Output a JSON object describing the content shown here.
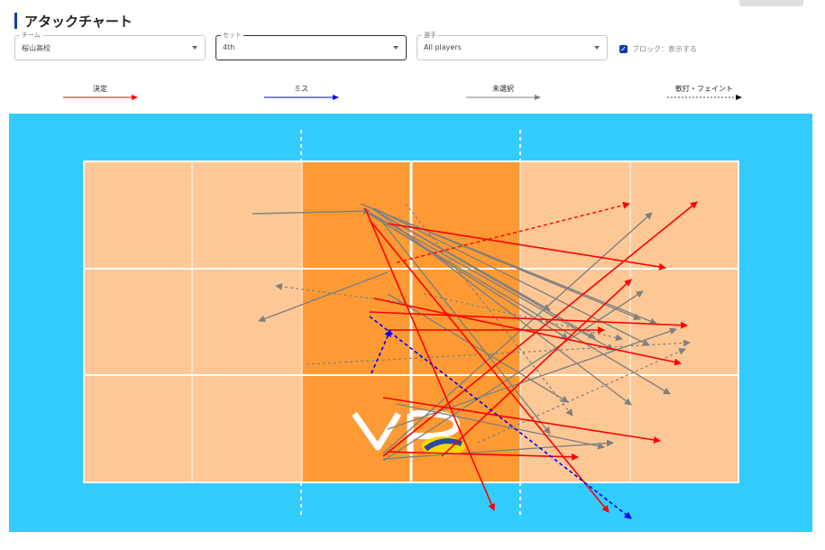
{
  "title": "アタックチャート",
  "filters": {
    "team": {
      "label": "チーム",
      "value": "桜山高校"
    },
    "set": {
      "label": "セット",
      "value": "4th"
    },
    "player": {
      "label": "選手",
      "value": "All players"
    },
    "block_toggle": {
      "label": "ブロック：表示する",
      "checked": true
    }
  },
  "legend": [
    {
      "label": "決定",
      "color": "#ff0000",
      "style": "solid"
    },
    {
      "label": "ミス",
      "color": "#0000ff",
      "style": "solid"
    },
    {
      "label": "未選択",
      "color": "#808080",
      "style": "solid"
    },
    {
      "label": "軟打・フェイント",
      "color": "#404040",
      "style": "dashed"
    }
  ],
  "colors": {
    "court_bg": "#33ccff",
    "back_zone": "#fec896",
    "front_zone": "#fe9a33",
    "kill": "#ff0000",
    "error": "#0000ff",
    "unselected": "#808080"
  }
}
